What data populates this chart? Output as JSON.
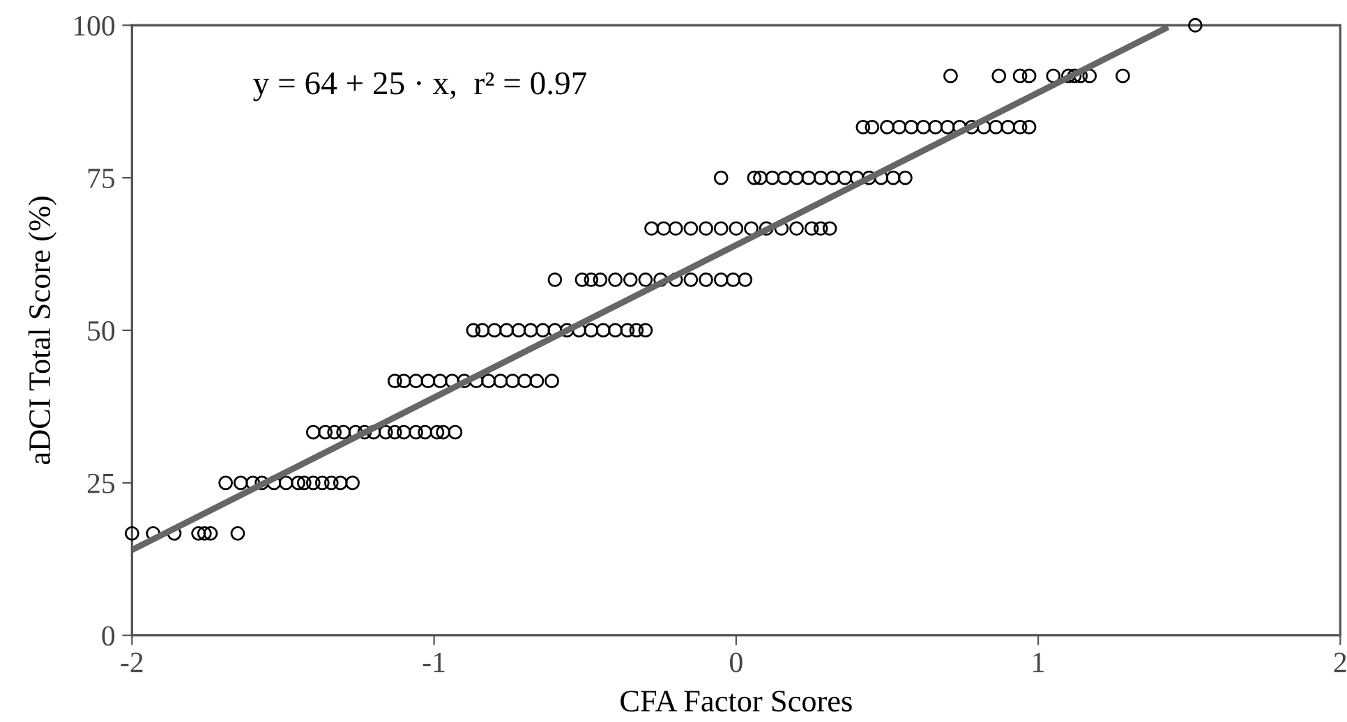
{
  "chart_data": {
    "type": "scatter",
    "xlabel": "CFA Factor Scores",
    "ylabel": "aDCI Total Score (%)",
    "annotations": [
      "y = 64 + 25 · x,  r² = 0.97"
    ],
    "xlim": [
      -2,
      2
    ],
    "xticks": [
      -2,
      -1,
      0,
      1,
      2
    ],
    "ylim": [
      0,
      100
    ],
    "yticks": [
      0,
      25,
      50,
      75,
      100
    ],
    "grid": false,
    "series": [
      {
        "marker": "circle",
        "color": "#000000",
        "x": [
          -2.0,
          -1.93,
          -1.86,
          -1.78,
          -1.76,
          -1.74,
          -1.65,
          -1.69,
          -1.64,
          -1.6,
          -1.57,
          -1.53,
          -1.49,
          -1.45,
          -1.43,
          -1.4,
          -1.37,
          -1.34,
          -1.31,
          -1.27,
          -1.4,
          -1.36,
          -1.33,
          -1.3,
          -1.26,
          -1.23,
          -1.2,
          -1.16,
          -1.13,
          -1.1,
          -1.06,
          -1.03,
          -0.99,
          -0.97,
          -0.93,
          -1.13,
          -1.1,
          -1.06,
          -1.02,
          -0.98,
          -0.94,
          -0.9,
          -0.86,
          -0.82,
          -0.78,
          -0.74,
          -0.7,
          -0.66,
          -0.61,
          -0.87,
          -0.84,
          -0.8,
          -0.76,
          -0.72,
          -0.68,
          -0.64,
          -0.6,
          -0.56,
          -0.52,
          -0.48,
          -0.44,
          -0.4,
          -0.36,
          -0.33,
          -0.3,
          -0.6,
          -0.51,
          -0.48,
          -0.45,
          -0.4,
          -0.35,
          -0.3,
          -0.25,
          -0.2,
          -0.15,
          -0.1,
          -0.05,
          -0.01,
          0.03,
          -0.28,
          -0.24,
          -0.2,
          -0.15,
          -0.1,
          -0.05,
          0.0,
          0.05,
          0.1,
          0.15,
          0.2,
          0.25,
          0.28,
          0.31,
          -0.05,
          0.06,
          0.08,
          0.12,
          0.16,
          0.2,
          0.24,
          0.28,
          0.32,
          0.36,
          0.4,
          0.44,
          0.48,
          0.52,
          0.56,
          0.42,
          0.45,
          0.5,
          0.54,
          0.58,
          0.62,
          0.66,
          0.7,
          0.74,
          0.78,
          0.82,
          0.86,
          0.9,
          0.94,
          0.97,
          0.71,
          0.87,
          0.94,
          0.97,
          1.05,
          1.1,
          1.12,
          1.14,
          1.17,
          1.28,
          1.52
        ],
        "values": [
          16.7,
          16.7,
          16.7,
          16.7,
          16.7,
          16.7,
          16.7,
          25,
          25,
          25,
          25,
          25,
          25,
          25,
          25,
          25,
          25,
          25,
          25,
          25,
          33.3,
          33.3,
          33.3,
          33.3,
          33.3,
          33.3,
          33.3,
          33.3,
          33.3,
          33.3,
          33.3,
          33.3,
          33.3,
          33.3,
          33.3,
          41.7,
          41.7,
          41.7,
          41.7,
          41.7,
          41.7,
          41.7,
          41.7,
          41.7,
          41.7,
          41.7,
          41.7,
          41.7,
          41.7,
          50,
          50,
          50,
          50,
          50,
          50,
          50,
          50,
          50,
          50,
          50,
          50,
          50,
          50,
          50,
          50,
          58.3,
          58.3,
          58.3,
          58.3,
          58.3,
          58.3,
          58.3,
          58.3,
          58.3,
          58.3,
          58.3,
          58.3,
          58.3,
          58.3,
          66.7,
          66.7,
          66.7,
          66.7,
          66.7,
          66.7,
          66.7,
          66.7,
          66.7,
          66.7,
          66.7,
          66.7,
          66.7,
          66.7,
          75,
          75,
          75,
          75,
          75,
          75,
          75,
          75,
          75,
          75,
          75,
          75,
          75,
          75,
          75,
          83.3,
          83.3,
          83.3,
          83.3,
          83.3,
          83.3,
          83.3,
          83.3,
          83.3,
          83.3,
          83.3,
          83.3,
          83.3,
          83.3,
          83.3,
          91.7,
          91.7,
          91.7,
          91.7,
          91.7,
          91.7,
          91.7,
          91.7,
          91.7,
          91.7,
          100
        ]
      },
      {
        "type": "line",
        "color": "#666666",
        "x": [
          -2,
          1.43
        ],
        "values": [
          14,
          99.7
        ],
        "marker": "none"
      }
    ]
  }
}
